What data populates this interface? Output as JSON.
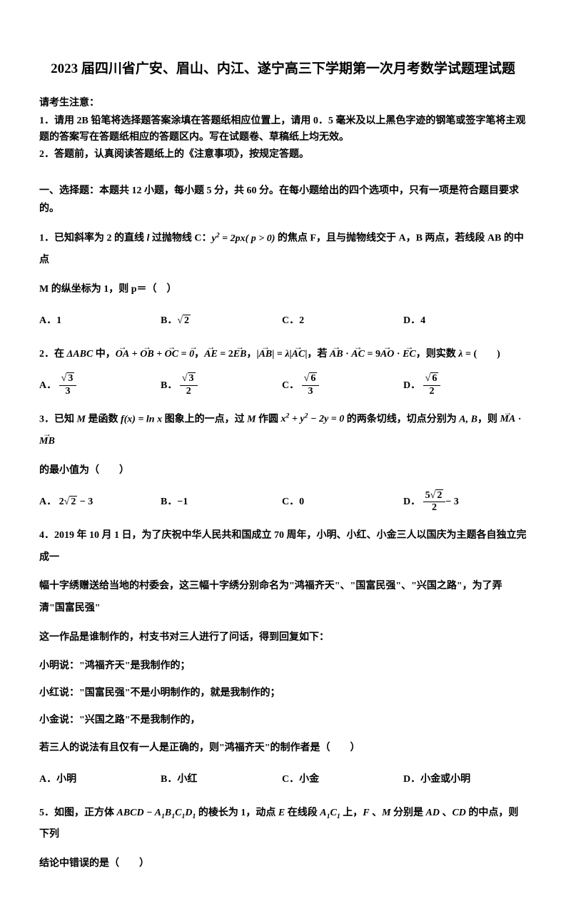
{
  "title": "2023 届四川省广安、眉山、内江、遂宁高三下学期第一次月考数学试题理试题",
  "notice_header": "请考生注意：",
  "notice1": "1．请用 2B 铅笔将选择题答案涂填在答题纸相应位置上，请用 0．5 毫米及以上黑色字迹的钢笔或签字笔将主观题的答案写在答题纸相应的答题区内。写在试题卷、草稿纸上均无效。",
  "notice2": "2．答题前，认真阅读答题纸上的《注意事项》，按规定答题。",
  "section1": "一、选择题：本题共 12 小题，每小题 5 分，共 60 分。在每小题给出的四个选项中，只有一项是符合题目要求的。",
  "q1": {
    "prefix": "1．已知斜率为 2 的直线 ",
    "mid1": " 过抛物线 C：",
    "formula": "y² = 2px( p > 0)",
    "mid2": " 的焦点 F，且与抛物线交于 A，B 两点，若线段 AB 的中点",
    "line2": "M 的纵坐标为 1，则 p＝（　）",
    "a": "A．1",
    "b": "B．",
    "c": "C．2",
    "d": "D．4"
  },
  "q2": {
    "prefix": "2．在 ",
    "tri": "ΔABC",
    "mid1": " 中，",
    "mid2": "，",
    "mid3": "，",
    "mid4": "，若 ",
    "mid5": "，则实数 ",
    "lambda": "λ",
    "end": " = (　　)",
    "a_label": "A．",
    "b_label": "B．",
    "c_label": "C．",
    "d_label": "D．"
  },
  "q3": {
    "prefix": "3．已知 ",
    "M": "M",
    "mid1": " 是函数 ",
    "fx": "f(x) = ln x",
    "mid2": " 图象上的一点，过 ",
    "mid3": " 作圆 ",
    "circle": "x² + y² − 2y = 0",
    "mid4": " 的两条切线，切点分别为 ",
    "AB": "A, B",
    "mid5": "，则 ",
    "line2": "的最小值为（　　）",
    "a_label": "A．",
    "b_label": "B．",
    "b_val": "−1",
    "c_label": "C．",
    "c_val": "0",
    "d_label": "D．"
  },
  "q4": {
    "line1": "4．2019 年 10 月 1 日，为了庆祝中华人民共和国成立 70 周年，小明、小红、小金三人以国庆为主题各自独立完成一",
    "line2": "幅十字绣赠送给当地的村委会，这三幅十字绣分别命名为\"鸿福齐天\"、\"国富民强\"、\"兴国之路\"，为了弄清\"国富民强\"",
    "line3": "这一作品是谁制作的，村支书对三人进行了问话，得到回复如下：",
    "d1": "小明说：\"鸿福齐天\"是我制作的；",
    "d2": "小红说：\"国富民强\"不是小明制作的，就是我制作的；",
    "d3": "小金说：\"兴国之路\"不是我制作的，",
    "cond": "若三人的说法有且仅有一人是正确的，则\"鸿福齐天\"的制作者是（　　）",
    "a": "A．小明",
    "b": "B．小红",
    "c": "C．小金",
    "d": "D．小金或小明"
  },
  "q5": {
    "prefix": "5．如图，正方体 ",
    "cube": "ABCD − A₁B₁C₁D₁",
    "mid1": " 的棱长为 1，动点 ",
    "E": "E",
    "mid2": " 在线段 ",
    "seg": "A₁C₁",
    "mid3": " 上，",
    "F": "F",
    "mid4": " 、",
    "M2": "M",
    "mid5": " 分别是 ",
    "AD": "AD",
    "mid6": " 、",
    "CD": "CD",
    "mid7": " 的中点，则下列",
    "line2": "结论中错误的是（　　）"
  }
}
